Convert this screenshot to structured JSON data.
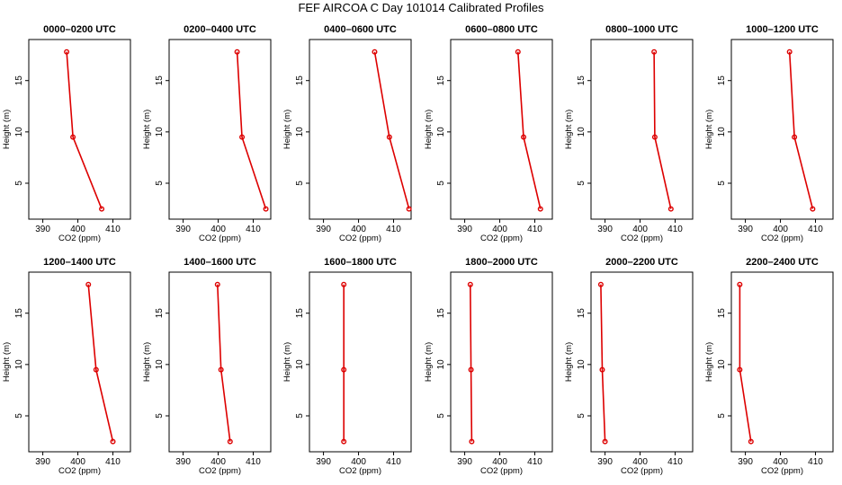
{
  "figure_title": "FEF AIRCOA C  Day 101014  Calibrated Profiles",
  "colors": {
    "series": "#dd0000",
    "axis": "#000000",
    "background": "#ffffff"
  },
  "chart_data": [
    {
      "type": "line",
      "title": "0000–0200 UTC",
      "xlabel": "CO2 (ppm)",
      "ylabel": "Height (m)",
      "xlim": [
        386,
        415
      ],
      "ylim": [
        1.5,
        19
      ],
      "xticks": [
        "390",
        "400",
        "410"
      ],
      "yticks": [
        "5",
        "10",
        "15"
      ],
      "x": [
        396.8,
        398.6,
        406.8
      ],
      "y": [
        17.8,
        9.5,
        2.5
      ]
    },
    {
      "type": "line",
      "title": "0200–0400 UTC",
      "xlabel": "CO2 (ppm)",
      "ylabel": "Height (m)",
      "xlim": [
        386,
        415
      ],
      "ylim": [
        1.5,
        19
      ],
      "xticks": [
        "390",
        "400",
        "410"
      ],
      "yticks": [
        "5",
        "10",
        "15"
      ],
      "x": [
        405.4,
        406.8,
        413.6
      ],
      "y": [
        17.8,
        9.5,
        2.5
      ]
    },
    {
      "type": "line",
      "title": "0400–0600 UTC",
      "xlabel": "CO2 (ppm)",
      "ylabel": "Height (m)",
      "xlim": [
        386,
        415
      ],
      "ylim": [
        1.5,
        19
      ],
      "xticks": [
        "390",
        "400",
        "410"
      ],
      "yticks": [
        "5",
        "10",
        "15"
      ],
      "x": [
        404.6,
        408.8,
        414.4
      ],
      "y": [
        17.8,
        9.5,
        2.5
      ]
    },
    {
      "type": "line",
      "title": "0600–0800 UTC",
      "xlabel": "CO2 (ppm)",
      "ylabel": "Height (m)",
      "xlim": [
        386,
        415
      ],
      "ylim": [
        1.5,
        19
      ],
      "xticks": [
        "390",
        "400",
        "410"
      ],
      "yticks": [
        "5",
        "10",
        "15"
      ],
      "x": [
        405.2,
        406.8,
        411.6
      ],
      "y": [
        17.8,
        9.5,
        2.5
      ]
    },
    {
      "type": "line",
      "title": "0800–1000 UTC",
      "xlabel": "CO2 (ppm)",
      "ylabel": "Height (m)",
      "xlim": [
        386,
        415
      ],
      "ylim": [
        1.5,
        19
      ],
      "xticks": [
        "390",
        "400",
        "410"
      ],
      "yticks": [
        "5",
        "10",
        "15"
      ],
      "x": [
        404.0,
        404.2,
        408.8
      ],
      "y": [
        17.8,
        9.5,
        2.5
      ]
    },
    {
      "type": "line",
      "title": "1000–1200 UTC",
      "xlabel": "CO2 (ppm)",
      "ylabel": "Height (m)",
      "xlim": [
        386,
        415
      ],
      "ylim": [
        1.5,
        19
      ],
      "xticks": [
        "390",
        "400",
        "410"
      ],
      "yticks": [
        "5",
        "10",
        "15"
      ],
      "x": [
        402.6,
        404.0,
        409.2
      ],
      "y": [
        17.8,
        9.5,
        2.5
      ]
    },
    {
      "type": "line",
      "title": "1200–1400 UTC",
      "xlabel": "CO2 (ppm)",
      "ylabel": "Height (m)",
      "xlim": [
        386,
        415
      ],
      "ylim": [
        1.5,
        19
      ],
      "xticks": [
        "390",
        "400",
        "410"
      ],
      "yticks": [
        "5",
        "10",
        "15"
      ],
      "x": [
        403.0,
        405.2,
        410.0
      ],
      "y": [
        17.8,
        9.5,
        2.5
      ]
    },
    {
      "type": "line",
      "title": "1400–1600 UTC",
      "xlabel": "CO2 (ppm)",
      "ylabel": "Height (m)",
      "xlim": [
        386,
        415
      ],
      "ylim": [
        1.5,
        19
      ],
      "xticks": [
        "390",
        "400",
        "410"
      ],
      "yticks": [
        "5",
        "10",
        "15"
      ],
      "x": [
        399.8,
        400.8,
        403.4
      ],
      "y": [
        17.8,
        9.5,
        2.5
      ]
    },
    {
      "type": "line",
      "title": "1600–1800 UTC",
      "xlabel": "CO2 (ppm)",
      "ylabel": "Height (m)",
      "xlim": [
        386,
        415
      ],
      "ylim": [
        1.5,
        19
      ],
      "xticks": [
        "390",
        "400",
        "410"
      ],
      "yticks": [
        "5",
        "10",
        "15"
      ],
      "x": [
        395.8,
        395.8,
        395.8
      ],
      "y": [
        17.8,
        9.5,
        2.5
      ]
    },
    {
      "type": "line",
      "title": "1800–2000 UTC",
      "xlabel": "CO2 (ppm)",
      "ylabel": "Height (m)",
      "xlim": [
        386,
        415
      ],
      "ylim": [
        1.5,
        19
      ],
      "xticks": [
        "390",
        "400",
        "410"
      ],
      "yticks": [
        "5",
        "10",
        "15"
      ],
      "x": [
        391.6,
        391.8,
        392.0
      ],
      "y": [
        17.8,
        9.5,
        2.5
      ]
    },
    {
      "type": "line",
      "title": "2000–2200 UTC",
      "xlabel": "CO2 (ppm)",
      "ylabel": "Height (m)",
      "xlim": [
        386,
        415
      ],
      "ylim": [
        1.5,
        19
      ],
      "xticks": [
        "390",
        "400",
        "410"
      ],
      "yticks": [
        "5",
        "10",
        "15"
      ],
      "x": [
        388.8,
        389.2,
        390.0
      ],
      "y": [
        17.8,
        9.5,
        2.5
      ]
    },
    {
      "type": "line",
      "title": "2200–2400 UTC",
      "xlabel": "CO2 (ppm)",
      "ylabel": "Height (m)",
      "xlim": [
        386,
        415
      ],
      "ylim": [
        1.5,
        19
      ],
      "xticks": [
        "390",
        "400",
        "410"
      ],
      "yticks": [
        "5",
        "10",
        "15"
      ],
      "x": [
        388.4,
        388.4,
        391.6
      ],
      "y": [
        17.8,
        9.5,
        2.5
      ]
    }
  ]
}
